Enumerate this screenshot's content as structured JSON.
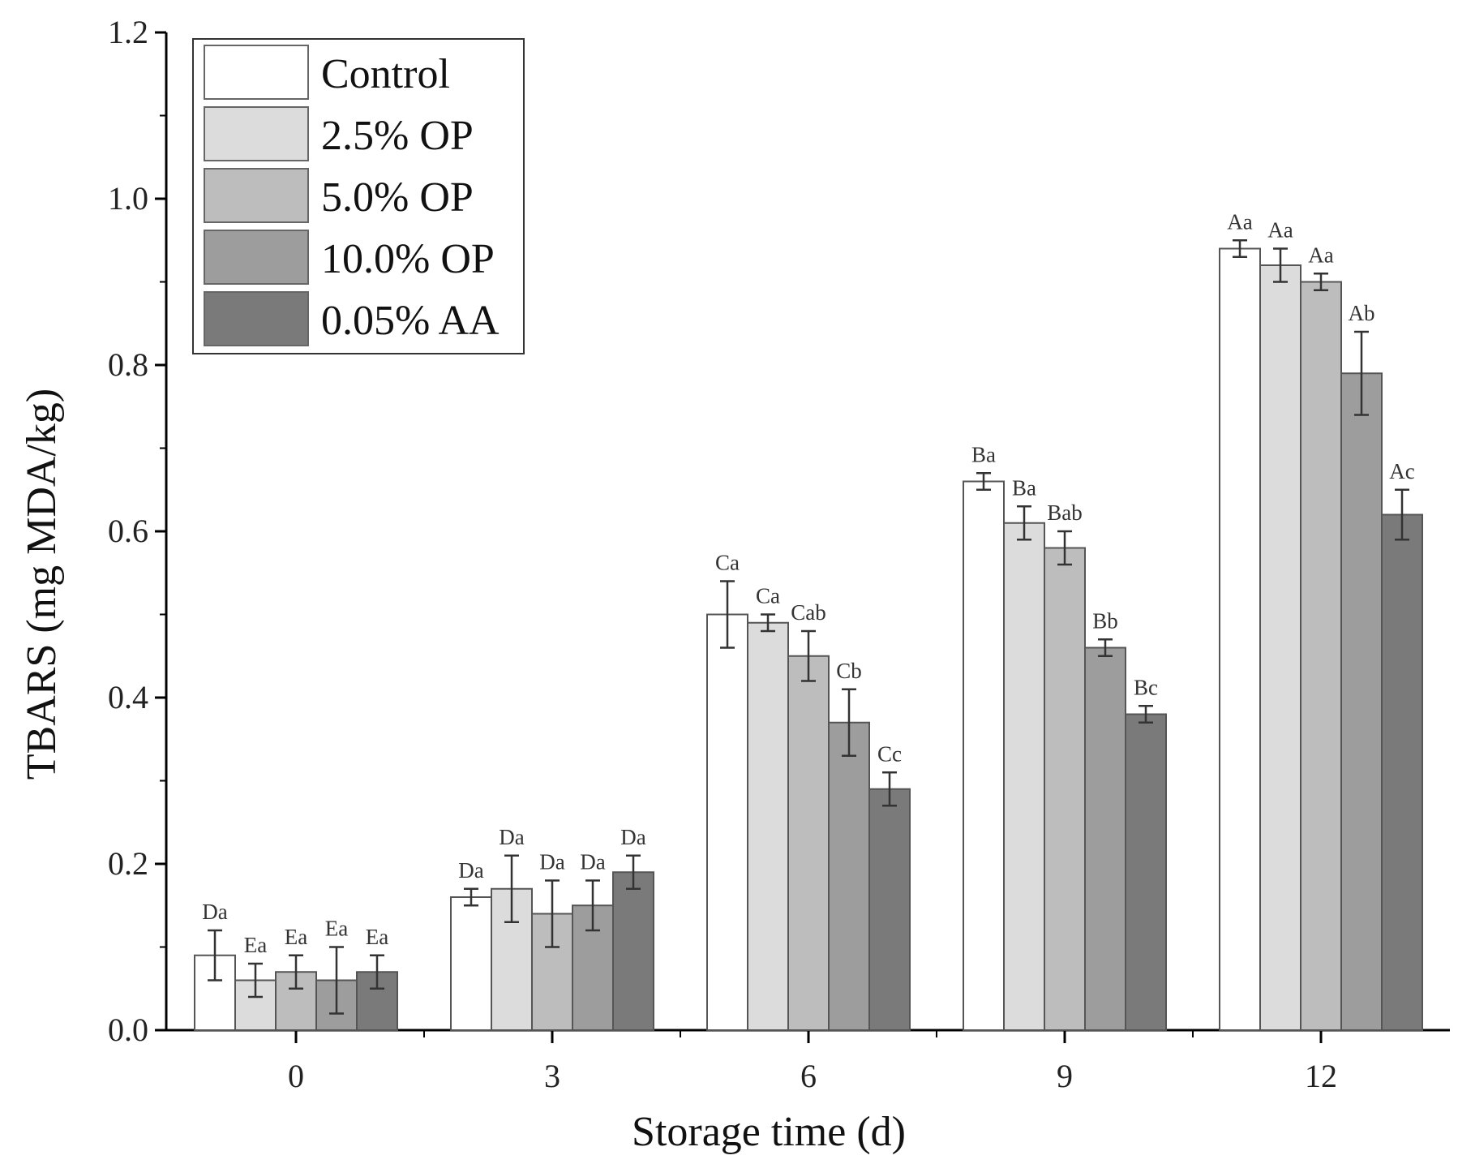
{
  "chart_data": {
    "type": "bar",
    "title": "",
    "xlabel": "Storage time (d)",
    "ylabel": "TBARS (mg MDA/kg)",
    "ylim": [
      0.0,
      1.2
    ],
    "yticks": [
      "0.0",
      "0.2",
      "0.4",
      "0.6",
      "0.8",
      "1.0",
      "1.2"
    ],
    "categories": [
      "0",
      "3",
      "6",
      "9",
      "12"
    ],
    "legend_position": "top-left",
    "series": [
      {
        "name": "Control",
        "color": "#ffffff",
        "values": [
          0.09,
          0.16,
          0.5,
          0.66,
          0.94
        ],
        "errors": [
          0.03,
          0.01,
          0.04,
          0.01,
          0.01
        ],
        "labels": [
          "Da",
          "Da",
          "Ca",
          "Ba",
          "Aa"
        ]
      },
      {
        "name": "2.5%  OP",
        "color": "#dcdcdc",
        "values": [
          0.06,
          0.17,
          0.49,
          0.61,
          0.92
        ],
        "errors": [
          0.02,
          0.04,
          0.01,
          0.02,
          0.02
        ],
        "labels": [
          "Ea",
          "Da",
          "Ca",
          "Ba",
          "Aa"
        ]
      },
      {
        "name": "5.0%  OP",
        "color": "#bdbdbd",
        "values": [
          0.07,
          0.14,
          0.45,
          0.58,
          0.9
        ],
        "errors": [
          0.02,
          0.04,
          0.03,
          0.02,
          0.01
        ],
        "labels": [
          "Ea",
          "Da",
          "Cab",
          "Bab",
          "Aa"
        ]
      },
      {
        "name": "10.0% OP",
        "color": "#9d9d9d",
        "values": [
          0.06,
          0.15,
          0.37,
          0.46,
          0.79
        ],
        "errors": [
          0.04,
          0.03,
          0.04,
          0.01,
          0.05
        ],
        "labels": [
          "Ea",
          "Da",
          "Cb",
          "Bb",
          "Ab"
        ]
      },
      {
        "name": "0.05% AA",
        "color": "#7a7a7a",
        "values": [
          0.07,
          0.19,
          0.29,
          0.38,
          0.62
        ],
        "errors": [
          0.02,
          0.02,
          0.02,
          0.01,
          0.03
        ],
        "labels": [
          "Ea",
          "Da",
          "Cc",
          "Bc",
          "Ac"
        ]
      }
    ]
  }
}
